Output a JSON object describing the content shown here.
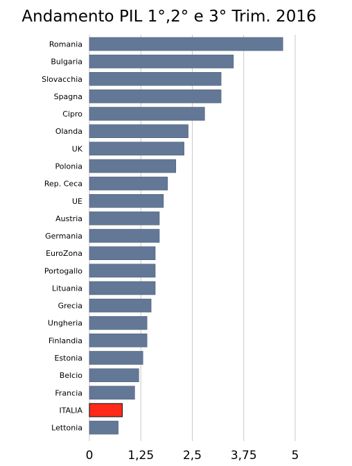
{
  "title": "Andamento PIL 1°,2° e 3° Trim. 2016",
  "chart_data": {
    "type": "bar",
    "orientation": "horizontal",
    "title": "Andamento PIL 1°,2° e 3° Trim. 2016",
    "xlabel": "",
    "ylabel": "",
    "xlim": [
      0,
      5
    ],
    "x_ticks": [
      0,
      1.25,
      2.5,
      3.75,
      5
    ],
    "x_tick_labels": [
      "0",
      "1,25",
      "2,5",
      "3,75",
      "5"
    ],
    "grid": "vertical",
    "legend": "none",
    "colors": {
      "bar": "#637896",
      "bar_stroke": "#4a5c74",
      "highlight": "#ff2a1a",
      "highlight_stroke": "#222222",
      "grid": "#c8c8c8"
    },
    "highlight": "ITALIA",
    "categories": [
      "Romania",
      "Bulgaria",
      "Slovacchia",
      "Spagna",
      "Cipro",
      "Olanda",
      "UK",
      "Polonia",
      "Rep. Ceca",
      "UE",
      "Austria",
      "Germania",
      "EuroZona",
      "Portogallo",
      "Lituania",
      "Grecia",
      "Ungheria",
      "Finlandia",
      "Estonia",
      "Belcio",
      "Francia",
      "ITALIA",
      "Lettonia"
    ],
    "values": [
      4.7,
      3.5,
      3.2,
      3.2,
      2.8,
      2.4,
      2.3,
      2.1,
      1.9,
      1.8,
      1.7,
      1.7,
      1.6,
      1.6,
      1.6,
      1.5,
      1.4,
      1.4,
      1.3,
      1.2,
      1.1,
      0.8,
      0.7
    ]
  }
}
